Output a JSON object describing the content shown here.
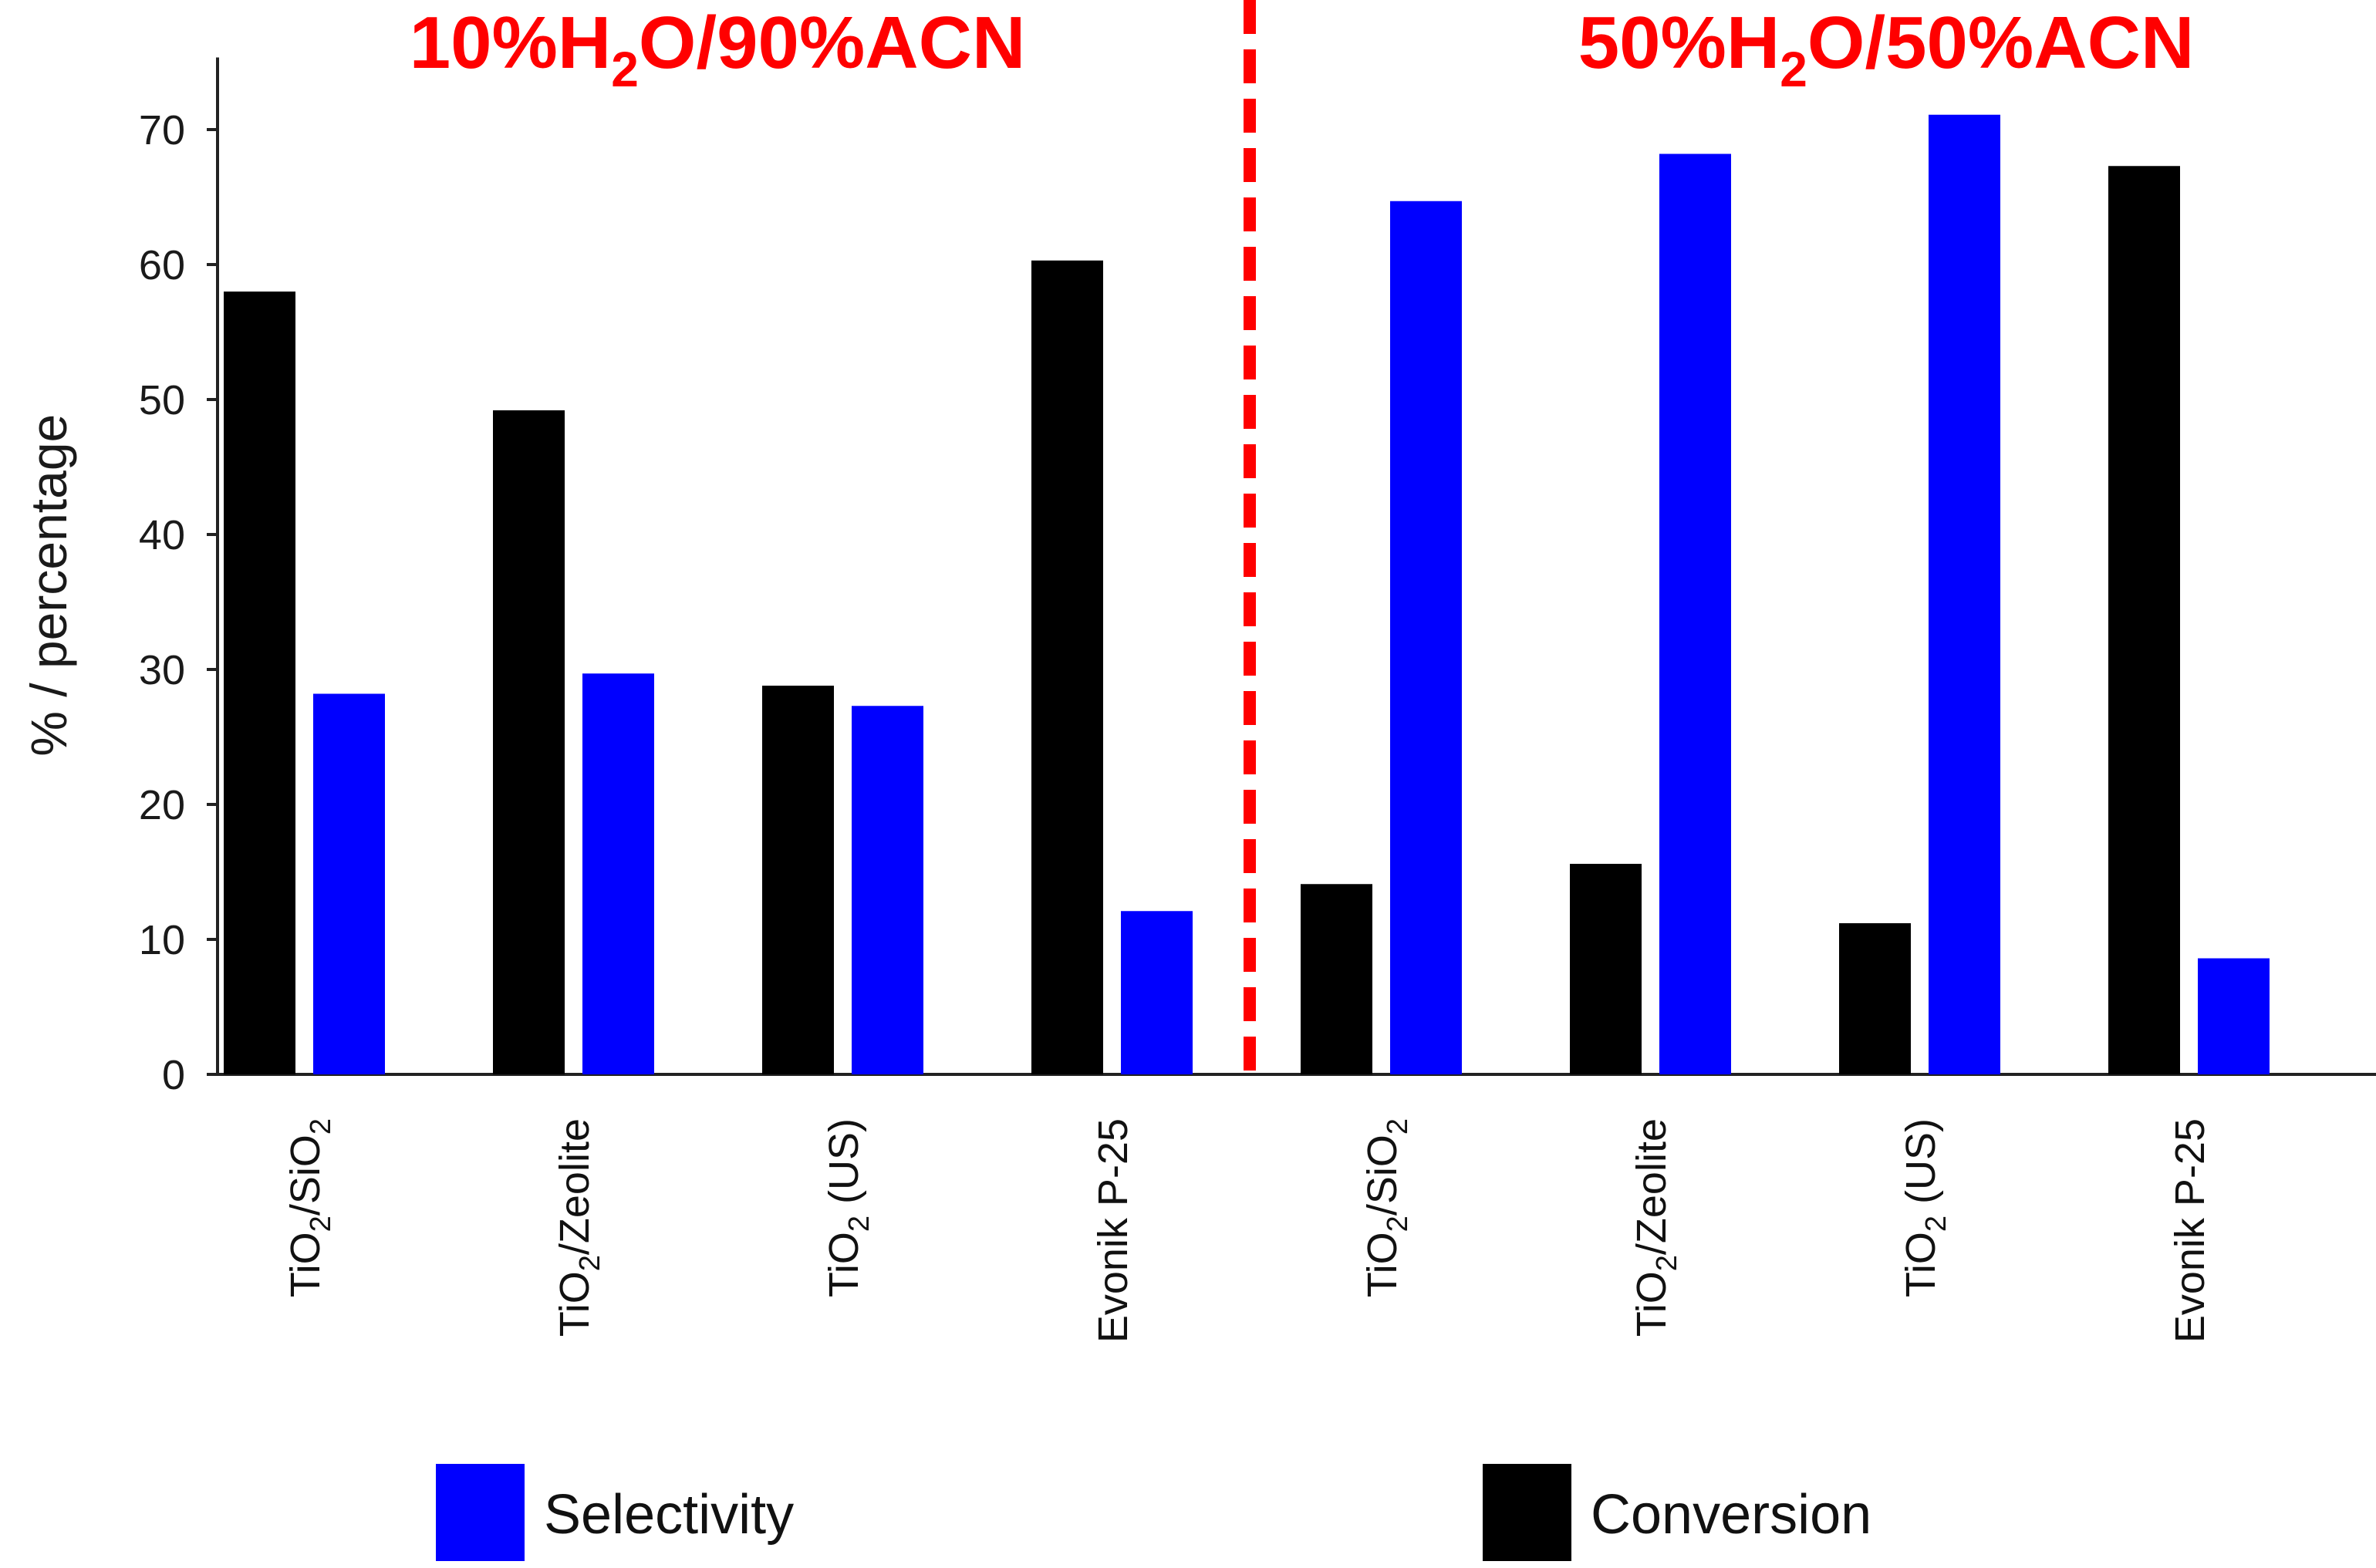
{
  "chart_data": {
    "type": "bar",
    "ylabel": "% / percentage",
    "ylim": [
      0,
      75
    ],
    "yticks": [
      0,
      10,
      20,
      30,
      40,
      50,
      60,
      70
    ],
    "categories": [
      {
        "main": "TiO",
        "sub": "2",
        "rest": "/SiO",
        "sub2": "2",
        "group": "10%H2O/90%ACN"
      },
      {
        "main": "TiO",
        "sub": "2",
        "rest": "/Zeolite",
        "sub2": "",
        "group": "10%H2O/90%ACN"
      },
      {
        "main": "TiO",
        "sub": "2",
        "rest": " (US)",
        "sub2": "",
        "group": "10%H2O/90%ACN"
      },
      {
        "main": "Evonik P-25",
        "sub": "",
        "rest": "",
        "sub2": "",
        "group": "10%H2O/90%ACN"
      },
      {
        "main": "TiO",
        "sub": "2",
        "rest": "/SiO",
        "sub2": "2",
        "group": "50%H2O/50%ACN"
      },
      {
        "main": "TiO",
        "sub": "2",
        "rest": "/Zeolite",
        "sub2": "",
        "group": "50%H2O/50%ACN"
      },
      {
        "main": "TiO",
        "sub": "2",
        "rest": " (US)",
        "sub2": "",
        "group": "50%H2O/50%ACN"
      },
      {
        "main": "Evonik P-25",
        "sub": "",
        "rest": "",
        "sub2": "",
        "group": "50%H2O/50%ACN"
      }
    ],
    "series": [
      {
        "name": "Conversion",
        "color": "#000000",
        "values": [
          58,
          49.2,
          28.8,
          60.3,
          14.1,
          15.6,
          11.2,
          67.3
        ]
      },
      {
        "name": "Selectivity",
        "color": "#0000ff",
        "values": [
          28.2,
          29.7,
          27.3,
          12.1,
          64.7,
          68.2,
          71.1,
          8.6
        ]
      }
    ],
    "panels": [
      {
        "pre": "10%H",
        "sub": "2",
        "post": "O/90%ACN"
      },
      {
        "pre": "50%H",
        "sub": "2",
        "post": "O/50%ACN"
      }
    ],
    "legend": [
      {
        "name": "Selectivity",
        "color": "#0000ff"
      },
      {
        "name": "Conversion",
        "color": "#000000"
      }
    ],
    "accent_color": "#ff0000"
  }
}
